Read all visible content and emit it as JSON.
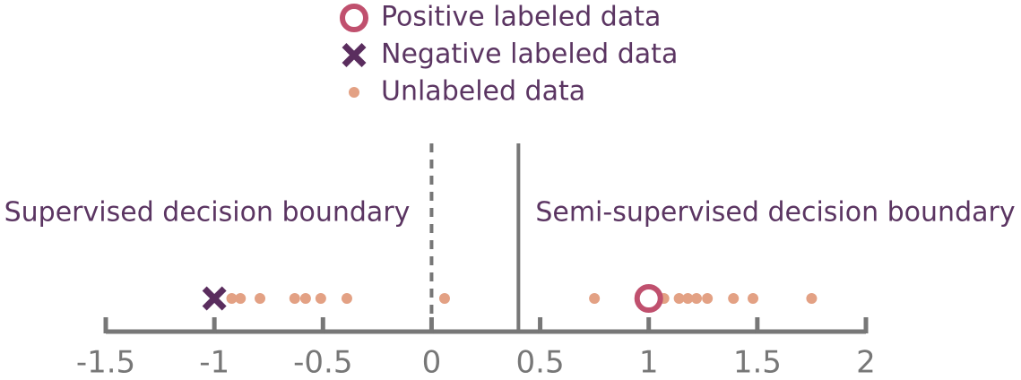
{
  "chart_data": {
    "type": "scatter",
    "series": [
      {
        "name": "Positive labeled data",
        "color": "#c0506e",
        "marker": "circle-open",
        "x": [
          1
        ],
        "values": [
          0
        ]
      },
      {
        "name": "Negative labeled data",
        "color": "#5a2d5e",
        "marker": "x",
        "x": [
          -1
        ],
        "values": [
          0
        ]
      },
      {
        "name": "Unlabeled data",
        "color": "#e3a184",
        "marker": "dot",
        "x": [
          -0.92,
          -0.88,
          -0.79,
          -0.63,
          -0.58,
          -0.51,
          -0.39,
          0.06,
          0.75,
          1.07,
          1.14,
          1.18,
          1.22,
          1.27,
          1.39,
          1.48,
          1.75
        ],
        "values": [
          0,
          0,
          0,
          0,
          0,
          0,
          0,
          0,
          0,
          0,
          0,
          0,
          0,
          0,
          0,
          0,
          0
        ]
      }
    ],
    "boundaries": [
      {
        "label": "Supervised decision boundary",
        "x": 0,
        "style": "dashed"
      },
      {
        "label": "Semi-supervised decision boundary",
        "x": 0.4,
        "style": "solid"
      }
    ],
    "xlim": [
      -1.5,
      2
    ],
    "xticks": [
      -1.5,
      -1,
      -0.5,
      0,
      0.5,
      1,
      1.5,
      2
    ],
    "legend": "top"
  }
}
